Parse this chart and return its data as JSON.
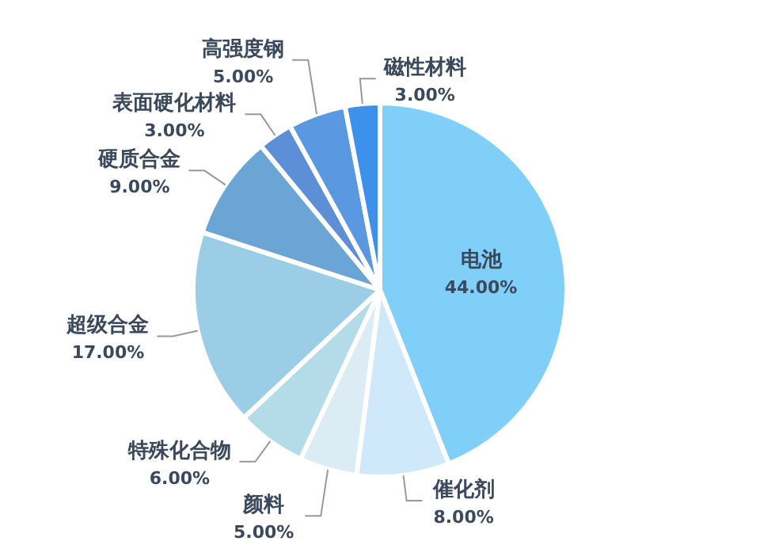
{
  "chart_data": {
    "type": "pie",
    "categories": [
      "电池",
      "催化剂",
      "颜料",
      "特殊化合物",
      "超级合金",
      "硬质合金",
      "表面硬化材料",
      "高强度钢",
      "磁性材料"
    ],
    "values": [
      44,
      8,
      5,
      6,
      17,
      9,
      3,
      5,
      3
    ],
    "value_labels": [
      "44.00%",
      "8.00%",
      "5.00%",
      "6.00%",
      "17.00%",
      "9.00%",
      "3.00%",
      "5.00%",
      "3.00%"
    ],
    "colors": [
      "#80cff8",
      "#cfe9fa",
      "#dcecf5",
      "#b3dbe8",
      "#9ccde6",
      "#6aa5d6",
      "#5d8fd6",
      "#5a98e2",
      "#3d91ea"
    ]
  }
}
